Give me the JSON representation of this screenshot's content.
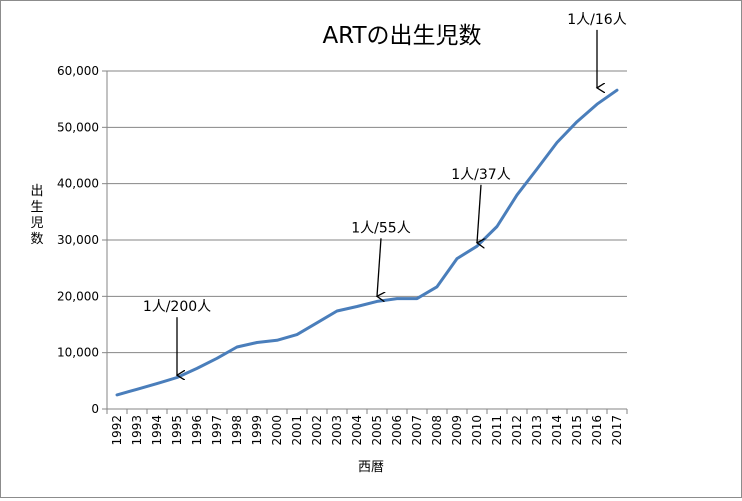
{
  "chart_data": {
    "type": "line",
    "title": "ARTの出生児数",
    "xlabel": "西暦",
    "ylabel": "出生児数",
    "ylim": [
      0,
      60000
    ],
    "yticks": [
      0,
      10000,
      20000,
      30000,
      40000,
      50000,
      60000
    ],
    "ytick_labels": [
      "0",
      "10,000",
      "20,000",
      "30,000",
      "40,000",
      "50,000",
      "60,000"
    ],
    "grid": true,
    "legend": "none",
    "x": [
      "1992",
      "1993",
      "1994",
      "1995",
      "1996",
      "1997",
      "1998",
      "1999",
      "2000",
      "2001",
      "2002",
      "2003",
      "2004",
      "2005",
      "2006",
      "2007",
      "2008",
      "2009",
      "2010",
      "2011",
      "2012",
      "2013",
      "2014",
      "2015",
      "2016",
      "2017"
    ],
    "series": [
      {
        "color": "#4a7ebb",
        "values": [
          2500,
          3500,
          4500,
          5600,
          7200,
          9000,
          11000,
          11800,
          12200,
          13200,
          15300,
          17400,
          18200,
          19100,
          19600,
          19600,
          21700,
          26700,
          28900,
          32400,
          38000,
          42600,
          47300,
          51000,
          54100,
          56600
        ]
      }
    ],
    "annotations": [
      {
        "text": "1人/200人",
        "x": "1995",
        "arrow_value": 6000
      },
      {
        "text": "1人/55人",
        "x": "2005",
        "arrow_value": 20000
      },
      {
        "text": "1人/37人",
        "x": "2010",
        "arrow_value": 29500
      },
      {
        "text": "1人/16人",
        "x": "2016",
        "arrow_value": 57000
      }
    ]
  }
}
